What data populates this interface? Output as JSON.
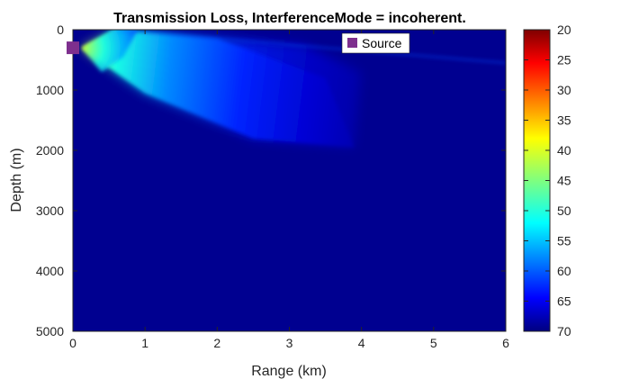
{
  "chart_data": {
    "type": "heatmap",
    "title": "Transmission Loss, InterferenceMode = incoherent.",
    "xlabel": "Range (km)",
    "ylabel": "Depth (m)",
    "xlim": [
      0,
      6
    ],
    "ylim": [
      0,
      5000
    ],
    "y_reversed": true,
    "x_ticks": [
      "0",
      "1",
      "2",
      "3",
      "4",
      "5",
      "6"
    ],
    "y_ticks": [
      "0",
      "1000",
      "2000",
      "3000",
      "4000",
      "5000"
    ],
    "colorbar": {
      "colormap": "jet",
      "range": [
        20,
        70
      ],
      "reversed": true,
      "ticks": [
        "20",
        "25",
        "30",
        "35",
        "40",
        "45",
        "50",
        "55",
        "60",
        "65",
        "70"
      ]
    },
    "source": {
      "label": "Source",
      "range_km": 0,
      "depth_m": 300,
      "color": "#7e2f8e"
    },
    "legend": {
      "entries": [
        "Source"
      ],
      "placement": "top-right"
    },
    "beam": {
      "apex_range_km": 0.12,
      "apex_depth_m": 300,
      "upper_edge": [
        [
          0.12,
          300
        ],
        [
          0.6,
          0
        ]
      ],
      "lower_edge": [
        [
          0.12,
          300
        ],
        [
          1.0,
          1050
        ],
        [
          2.5,
          1800
        ],
        [
          3.9,
          1950
        ]
      ],
      "reflected_ray": [
        [
          0.6,
          0
        ],
        [
          3.0,
          250
        ],
        [
          6.0,
          550
        ]
      ],
      "tl_at_apex": 40,
      "tl_at_upper_edge": 50,
      "background_tl": 68
    }
  }
}
